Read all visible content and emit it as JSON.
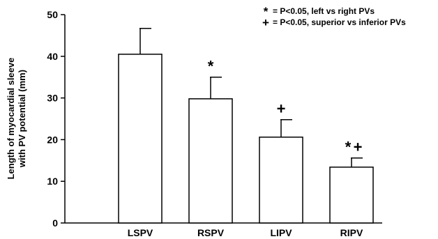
{
  "chart_data": {
    "type": "bar",
    "categories": [
      "LSPV",
      "RSPV",
      "LIPV",
      "RIPV"
    ],
    "values": [
      40.5,
      29.8,
      20.6,
      13.4
    ],
    "error_bars": [
      6.2,
      5.2,
      4.2,
      2.2
    ],
    "significance_marks": [
      [],
      [
        "*"
      ],
      [
        "+"
      ],
      [
        "*",
        "+"
      ]
    ],
    "ylabel_lines": [
      "Length of myocardial sleeve",
      "with PV potential (mm)"
    ],
    "xlabel": "",
    "ylim": [
      0,
      50
    ],
    "yticks": [
      0,
      10,
      20,
      30,
      40,
      50
    ],
    "grid": false,
    "legend": [
      {
        "symbol": "*",
        "text": "= P<0.05, left vs right PVs"
      },
      {
        "symbol": "+",
        "text": "= P<0.05, superior vs inferior PVs"
      }
    ],
    "legend_position": "top-right",
    "colors": {
      "bar_fill": "#ffffff",
      "bar_stroke": "#000000",
      "axis": "#000000"
    }
  }
}
